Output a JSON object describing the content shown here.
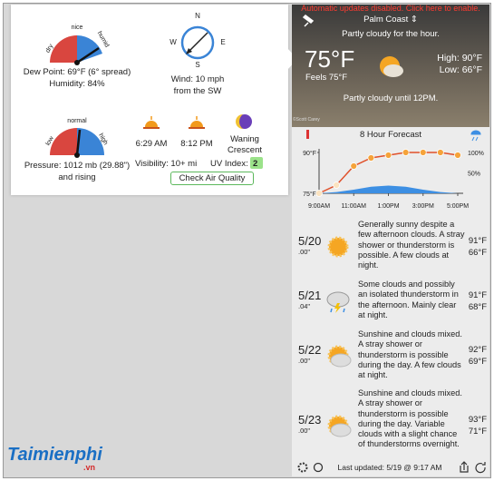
{
  "left_panel": {
    "humidity_gauge": {
      "labels": [
        "dry",
        "nice",
        "humid"
      ],
      "dew_point": "Dew Point: 69°F (6° spread)",
      "humidity": "Humidity: 84%"
    },
    "compass": {
      "n": "N",
      "e": "E",
      "s": "S",
      "w": "W",
      "wind": "Wind: 10 mph",
      "direction": "from the SW"
    },
    "pressure_gauge": {
      "labels": [
        "low",
        "normal",
        "high"
      ],
      "pressure": "Pressure: 1012 mb (29.88\")",
      "trend": "and rising"
    },
    "sunrise": "6:29 AM",
    "sunset": "8:12 PM",
    "moon": [
      "Waning",
      "Crescent"
    ],
    "visibility": "Visibility: 10+ mi",
    "uv_label": "UV Index:",
    "uv_value": "2",
    "air_button": "Check Air Quality"
  },
  "current": {
    "banner": "Automatic updates disabled. Click here to enable.",
    "location": "Palm Coast ⇕",
    "hour_summary": "Partly cloudy for the hour.",
    "temp": "75°F",
    "feels": "Feels 75°F",
    "high": "High: 90°F",
    "low": "Low: 66°F",
    "outlook": "Partly cloudy until 12PM.",
    "credit": "©Scott Carey"
  },
  "hourly": {
    "title": "8 Hour Forecast",
    "x": [
      9,
      10,
      11,
      12,
      13,
      14,
      15,
      16,
      17
    ],
    "temps": [
      75,
      78,
      85,
      88,
      89,
      90,
      90,
      90,
      89
    ],
    "precip": [
      0,
      3,
      9,
      16,
      19,
      16,
      9,
      3,
      0
    ],
    "xlim": [
      9,
      17
    ],
    "xticks": [
      {
        "value": 9,
        "label": "9:00AM"
      },
      {
        "value": 11,
        "label": "11:00AM"
      },
      {
        "value": 13,
        "label": "1:00PM"
      },
      {
        "value": 15,
        "label": "3:00PM"
      },
      {
        "value": 17,
        "label": "5:00PM"
      }
    ],
    "ylim": [
      75,
      90
    ],
    "yticks": [
      {
        "value": 90,
        "label": "90°F"
      },
      {
        "value": 75,
        "label": "75°F"
      }
    ],
    "y2lim": [
      0,
      100
    ],
    "y2ticks": [
      {
        "value": 100,
        "label": "100%"
      },
      {
        "value": 50,
        "label": "50%"
      }
    ],
    "line_color": "#e0502a",
    "area_color": "#3d8fe3"
  },
  "daily": [
    {
      "date": "5/20",
      "precip": ".00\"",
      "text": "Generally sunny despite a few afternoon clouds. A stray shower or thunderstorm is possible. A few clouds at night.",
      "high": "91°F",
      "low": "66°F"
    },
    {
      "date": "5/21",
      "precip": ".04\"",
      "text": "Some clouds and possibly an isolated thunderstorm in the afternoon. Mainly clear at night.",
      "high": "91°F",
      "low": "68°F"
    },
    {
      "date": "5/22",
      "precip": ".00\"",
      "text": "Sunshine and clouds mixed. A stray shower or thunderstorm is possible during the day. A few clouds at night.",
      "high": "92°F",
      "low": "69°F"
    },
    {
      "date": "5/23",
      "precip": ".00\"",
      "text": "Sunshine and clouds mixed. A stray shower or thunderstorm is possible during the day. Variable clouds with a slight chance of thunderstorms overnight.",
      "high": "93°F",
      "low": "71°F"
    }
  ],
  "footer": {
    "updated": "Last updated: 5/19 @ 9:17 AM"
  },
  "watermark": {
    "brand": "Taimienphi",
    "tld": ".vn"
  }
}
